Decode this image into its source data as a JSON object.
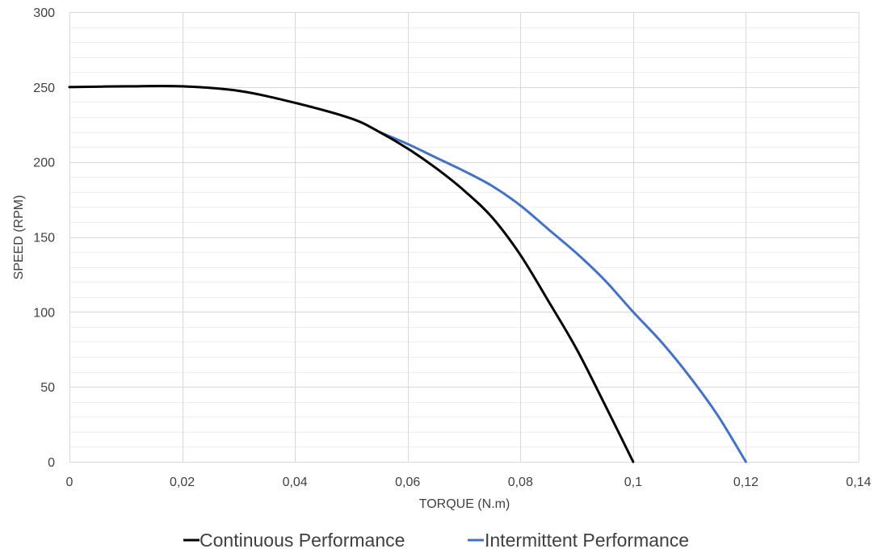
{
  "chart_data": {
    "type": "line",
    "title": "",
    "xlabel": "TORQUE (N.m)",
    "ylabel": "SPEED (RPM)",
    "xlim": [
      0,
      0.14
    ],
    "ylim": [
      0,
      300
    ],
    "x_ticks": [
      0,
      0.02,
      0.04,
      0.06,
      0.08,
      0.1,
      0.12,
      0.14
    ],
    "x_tick_labels": [
      "0",
      "0,02",
      "0,04",
      "0,06",
      "0,08",
      "0,1",
      "0,12",
      "0,14"
    ],
    "y_ticks": [
      0,
      50,
      100,
      150,
      200,
      250,
      300
    ],
    "y_tick_labels": [
      "0",
      "50",
      "100",
      "150",
      "200",
      "250",
      "300"
    ],
    "grid": true,
    "legend_position": "bottom",
    "series": [
      {
        "name": "Continuous Performance",
        "color": "#000000",
        "points": [
          [
            0,
            250
          ],
          [
            0.01,
            250.5
          ],
          [
            0.02,
            250.5
          ],
          [
            0.03,
            247.5
          ],
          [
            0.04,
            239.5
          ],
          [
            0.05,
            229
          ],
          [
            0.055,
            220
          ],
          [
            0.06,
            209
          ],
          [
            0.065,
            196
          ],
          [
            0.07,
            181
          ],
          [
            0.075,
            163
          ],
          [
            0.08,
            138
          ],
          [
            0.085,
            107
          ],
          [
            0.09,
            75
          ],
          [
            0.095,
            38
          ],
          [
            0.1,
            0
          ]
        ]
      },
      {
        "name": "Intermittent Performance",
        "color": "#4472c4",
        "points": [
          [
            0.055,
            220
          ],
          [
            0.06,
            212
          ],
          [
            0.065,
            203
          ],
          [
            0.07,
            194
          ],
          [
            0.075,
            184
          ],
          [
            0.08,
            171
          ],
          [
            0.085,
            155
          ],
          [
            0.09,
            139
          ],
          [
            0.095,
            121
          ],
          [
            0.1,
            100
          ],
          [
            0.105,
            80
          ],
          [
            0.11,
            57
          ],
          [
            0.115,
            31
          ],
          [
            0.12,
            0
          ]
        ]
      }
    ]
  }
}
